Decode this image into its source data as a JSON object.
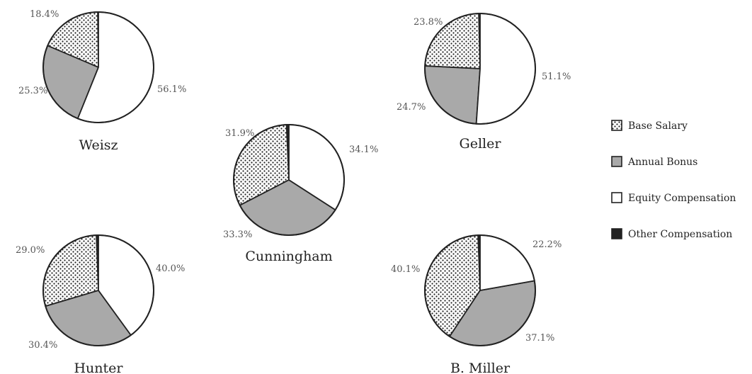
{
  "colors": {
    "base_salary": "dots",
    "annual_bonus": "#a9a9a9",
    "equity_compensation": "#ffffff",
    "other_compensation": "#222222",
    "outline": "#222222"
  },
  "chart_data": {
    "type": "pie",
    "title": "",
    "legend": {
      "placement": "right",
      "entries": [
        "Base Salary",
        "Annual Bonus",
        "Equity Compensation",
        "Other Compensation"
      ]
    },
    "categories": [
      "Base Salary",
      "Annual Bonus",
      "Equity Compensation",
      "Other Compensation"
    ],
    "pies": [
      {
        "name": "Weisz",
        "values": [
          18.4,
          25.3,
          56.1,
          0.2
        ],
        "labels": [
          "18.4%",
          "25.3%",
          "56.1%",
          ""
        ]
      },
      {
        "name": "Geller",
        "values": [
          23.8,
          24.7,
          51.1,
          0.4
        ],
        "labels": [
          "23.8%",
          "24.7%",
          "51.1%",
          ""
        ]
      },
      {
        "name": "Cunningham",
        "values": [
          31.9,
          33.3,
          34.1,
          0.7
        ],
        "labels": [
          "31.9%",
          "33.3%",
          "34.1%",
          ""
        ]
      },
      {
        "name": "Hunter",
        "values": [
          29.0,
          30.4,
          40.0,
          0.6
        ],
        "labels": [
          "29.0%",
          "30.4%",
          "40.0%",
          ""
        ]
      },
      {
        "name": "B. Miller",
        "values": [
          40.1,
          37.1,
          22.2,
          0.6
        ],
        "labels": [
          "40.1%",
          "37.1%",
          "22.2%",
          ""
        ]
      }
    ]
  }
}
